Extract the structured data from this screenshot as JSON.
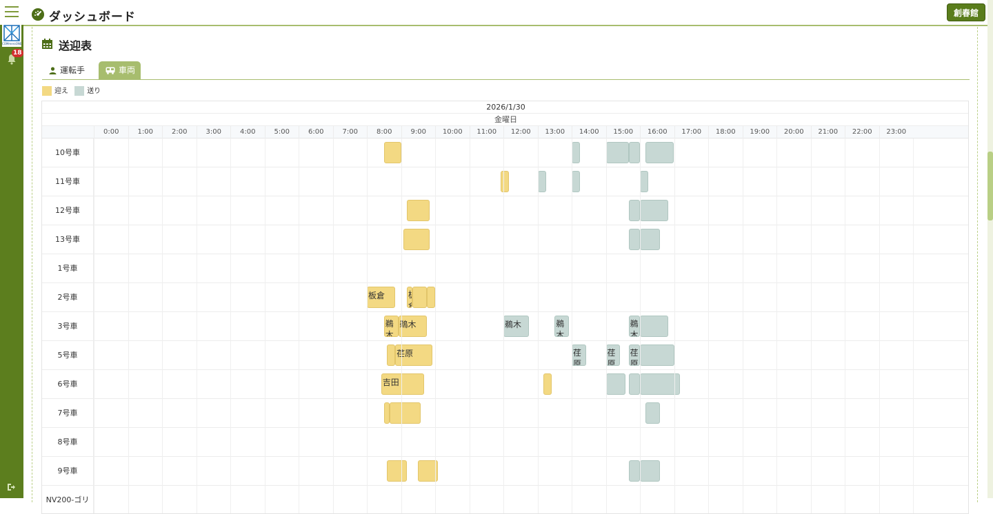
{
  "header": {
    "title": "ダッシュボード",
    "facility": "創春館"
  },
  "sidebar": {
    "logo_text": "COMmeroONE",
    "notification_count": "18"
  },
  "page": {
    "title": "送迎表"
  },
  "tabs": [
    {
      "label": "運転手"
    },
    {
      "label": "車両"
    }
  ],
  "legend": [
    {
      "label": "迎え",
      "color": "#f3d983"
    },
    {
      "label": "送り",
      "color": "#c7d8d4"
    }
  ],
  "schedule": {
    "date": "2026/1/30",
    "weekday": "金曜日",
    "hours": [
      "0:00",
      "1:00",
      "2:00",
      "3:00",
      "4:00",
      "5:00",
      "6:00",
      "7:00",
      "8:00",
      "9:00",
      "10:00",
      "11:00",
      "12:00",
      "13:00",
      "14:00",
      "15:00",
      "16:00",
      "17:00",
      "18:00",
      "19:00",
      "20:00",
      "21:00",
      "22:00",
      "23:00"
    ],
    "vehicles": [
      {
        "name": "10号車",
        "events": [
          {
            "type": "pickup",
            "start": 8.5,
            "end": 9.0,
            "label": ""
          },
          {
            "type": "dropoff",
            "start": 14.0,
            "end": 14.25,
            "label": ""
          },
          {
            "type": "dropoff",
            "start": 15.0,
            "end": 15.67,
            "label": ""
          },
          {
            "type": "dropoff",
            "start": 15.67,
            "end": 16.0,
            "label": ""
          },
          {
            "type": "dropoff",
            "start": 16.17,
            "end": 17.0,
            "label": ""
          }
        ]
      },
      {
        "name": "11号車",
        "events": [
          {
            "type": "pickup",
            "start": 11.92,
            "end": 12.17,
            "label": ""
          },
          {
            "type": "dropoff",
            "start": 13.0,
            "end": 13.25,
            "label": ""
          },
          {
            "type": "dropoff",
            "start": 14.0,
            "end": 14.25,
            "label": ""
          },
          {
            "type": "dropoff",
            "start": 16.0,
            "end": 16.25,
            "label": ""
          }
        ]
      },
      {
        "name": "12号車",
        "events": [
          {
            "type": "pickup",
            "start": 9.17,
            "end": 9.83,
            "label": ""
          },
          {
            "type": "dropoff",
            "start": 15.67,
            "end": 16.0,
            "label": ""
          },
          {
            "type": "dropoff",
            "start": 16.0,
            "end": 16.83,
            "label": ""
          }
        ]
      },
      {
        "name": "13号車",
        "events": [
          {
            "type": "pickup",
            "start": 9.08,
            "end": 9.83,
            "label": ""
          },
          {
            "type": "dropoff",
            "start": 15.67,
            "end": 16.0,
            "label": ""
          },
          {
            "type": "dropoff",
            "start": 16.0,
            "end": 16.58,
            "label": ""
          }
        ]
      },
      {
        "name": "1号車",
        "events": []
      },
      {
        "name": "2号車",
        "events": [
          {
            "type": "pickup",
            "start": 8.0,
            "end": 8.83,
            "label": "板倉"
          },
          {
            "type": "pickup",
            "start": 9.17,
            "end": 9.33,
            "label": "板倉"
          },
          {
            "type": "pickup",
            "start": 9.33,
            "end": 9.75,
            "label": ""
          },
          {
            "type": "pickup",
            "start": 9.75,
            "end": 10.0,
            "label": ""
          }
        ]
      },
      {
        "name": "3号車",
        "events": [
          {
            "type": "pickup",
            "start": 8.5,
            "end": 8.92,
            "label": "鵜木"
          },
          {
            "type": "pickup",
            "start": 8.92,
            "end": 9.75,
            "label": "鵜木"
          },
          {
            "type": "dropoff",
            "start": 12.0,
            "end": 12.75,
            "label": "鵜木"
          },
          {
            "type": "dropoff",
            "start": 13.5,
            "end": 13.92,
            "label": "鵜木"
          },
          {
            "type": "dropoff",
            "start": 15.67,
            "end": 16.0,
            "label": "鵜木"
          },
          {
            "type": "dropoff",
            "start": 16.0,
            "end": 16.83,
            "label": ""
          }
        ]
      },
      {
        "name": "5号車",
        "events": [
          {
            "type": "pickup",
            "start": 8.58,
            "end": 8.83,
            "label": ""
          },
          {
            "type": "pickup",
            "start": 8.83,
            "end": 9.92,
            "label": "荏原"
          },
          {
            "type": "dropoff",
            "start": 14.0,
            "end": 14.42,
            "label": "荏原"
          },
          {
            "type": "dropoff",
            "start": 15.0,
            "end": 15.42,
            "label": "荏原"
          },
          {
            "type": "dropoff",
            "start": 15.67,
            "end": 16.0,
            "label": "荏原"
          },
          {
            "type": "dropoff",
            "start": 16.0,
            "end": 17.0,
            "label": ""
          }
        ]
      },
      {
        "name": "6号車",
        "events": [
          {
            "type": "pickup",
            "start": 8.42,
            "end": 9.67,
            "label": "吉田"
          },
          {
            "type": "pickup",
            "start": 13.17,
            "end": 13.42,
            "label": ""
          },
          {
            "type": "dropoff",
            "start": 15.0,
            "end": 15.58,
            "label": ""
          },
          {
            "type": "dropoff",
            "start": 15.67,
            "end": 16.0,
            "label": ""
          },
          {
            "type": "dropoff",
            "start": 16.0,
            "end": 17.17,
            "label": ""
          }
        ]
      },
      {
        "name": "7号車",
        "events": [
          {
            "type": "pickup",
            "start": 8.5,
            "end": 8.67,
            "label": ""
          },
          {
            "type": "pickup",
            "start": 8.67,
            "end": 9.58,
            "label": ""
          },
          {
            "type": "dropoff",
            "start": 16.17,
            "end": 16.58,
            "label": ""
          }
        ]
      },
      {
        "name": "8号車",
        "events": []
      },
      {
        "name": "9号車",
        "events": [
          {
            "type": "pickup",
            "start": 8.58,
            "end": 9.17,
            "label": ""
          },
          {
            "type": "pickup",
            "start": 9.5,
            "end": 10.08,
            "label": ""
          },
          {
            "type": "dropoff",
            "start": 15.67,
            "end": 16.0,
            "label": ""
          },
          {
            "type": "dropoff",
            "start": 16.0,
            "end": 16.58,
            "label": ""
          }
        ]
      },
      {
        "name": "NV200-ゴリ",
        "events": []
      }
    ]
  }
}
